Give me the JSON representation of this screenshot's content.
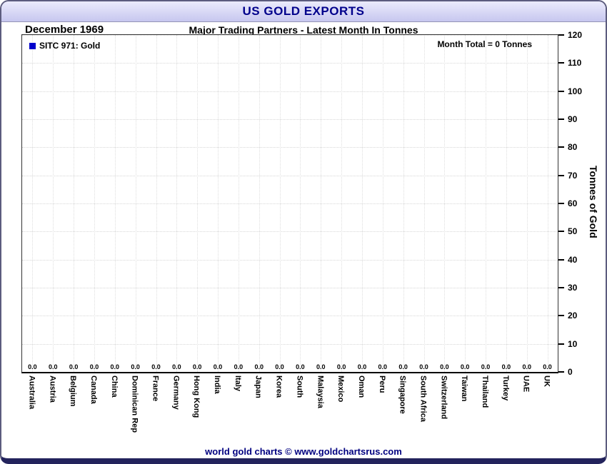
{
  "window": {
    "title": "US GOLD EXPORTS",
    "footer": "world gold charts © www.goldchartsrus.com"
  },
  "header": {
    "date_label": "December 1969",
    "subtitle": "Major Trading Partners - Latest Month In Tonnes"
  },
  "legend": {
    "label": "SITC 971: Gold",
    "color": "#0000cc"
  },
  "annotations": {
    "month_total": "Month Total = 0 Tonnes"
  },
  "colors": {
    "title_text": "#00008b",
    "footer_text": "#000080",
    "grid": "#d7d7d7",
    "bar": "#0000cc"
  },
  "chart_data": {
    "type": "bar",
    "title": "US GOLD EXPORTS",
    "subtitle": "Major Trading Partners - Latest Month In Tonnes",
    "period": "December 1969",
    "legend": "SITC 971: Gold",
    "month_total_tonnes": 0,
    "categories": [
      "Australia",
      "Austria",
      "Belgium",
      "Canada",
      "China",
      "Dominican Rep",
      "France",
      "Germany",
      "Hong Kong",
      "India",
      "Italy",
      "Japan",
      "Korea",
      "South",
      "Malaysia",
      "Mexico",
      "Oman",
      "Peru",
      "Singapore",
      "South Africa",
      "Switzerland",
      "Taiwan",
      "Thailand",
      "Turkey",
      "UAE",
      "UK"
    ],
    "values": [
      0.0,
      0.0,
      0.0,
      0.0,
      0.0,
      0.0,
      0.0,
      0.0,
      0.0,
      0.0,
      0.0,
      0.0,
      0.0,
      0.0,
      0.0,
      0.0,
      0.0,
      0.0,
      0.0,
      0.0,
      0.0,
      0.0,
      0.0,
      0.0,
      0.0,
      0.0
    ],
    "xlabel": "",
    "ylabel": "Tonnes of Gold",
    "ylim": [
      0,
      120
    ],
    "yticks": [
      0,
      10,
      20,
      30,
      40,
      50,
      60,
      70,
      80,
      90,
      100,
      110,
      120
    ],
    "y_axis_side": "right",
    "grid": true,
    "legend_position": "top-left"
  }
}
